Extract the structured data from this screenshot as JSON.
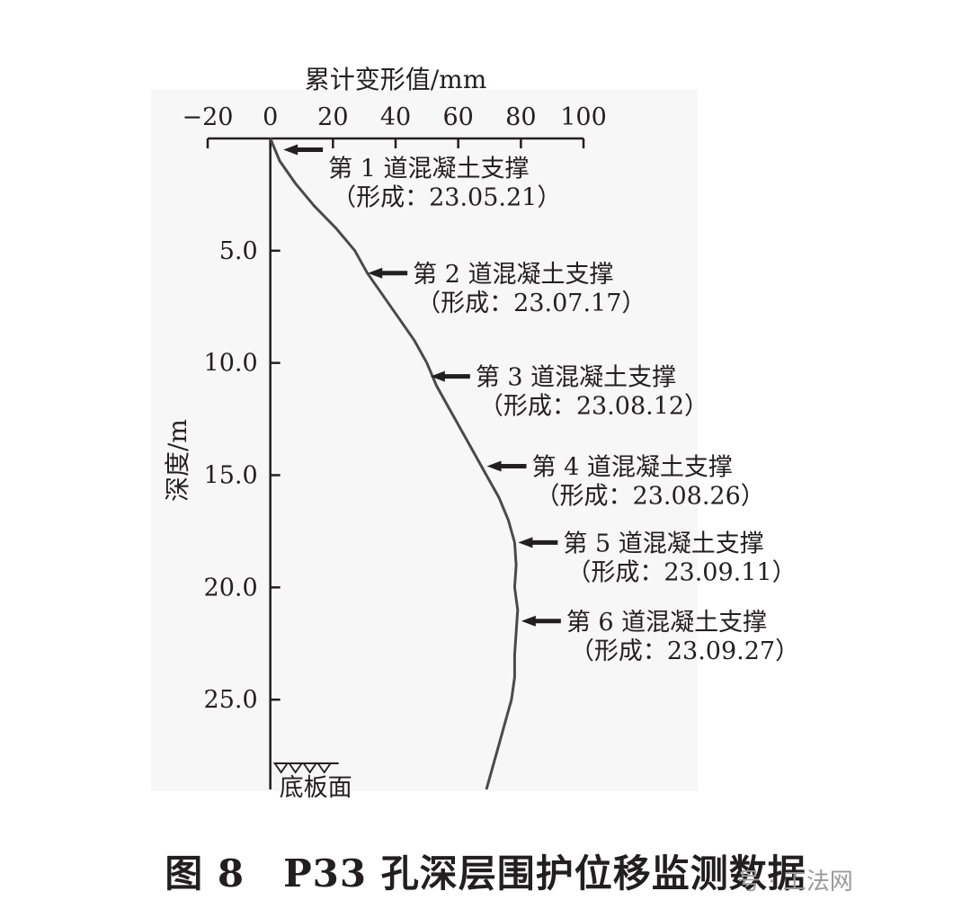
{
  "chart_data": {
    "type": "line",
    "xlabel": "累计变形值/mm",
    "ylabel": "深度/m",
    "xlim": [
      -20,
      100
    ],
    "ylim": [
      0,
      29
    ],
    "y_inverted": true,
    "x_axis_position": "top",
    "xticks": [
      "−20",
      "0",
      "20",
      "40",
      "60",
      "80",
      "100"
    ],
    "xtick_values": [
      -20,
      0,
      20,
      40,
      60,
      80,
      100
    ],
    "yticks": [
      "5.0",
      "10.0",
      "15.0",
      "20.0",
      "25.0"
    ],
    "ytick_values": [
      5,
      10,
      15,
      20,
      25
    ],
    "grid": false,
    "line_color": "#4a4a4a",
    "series": [
      {
        "points": [
          {
            "x": 0,
            "depth": 0
          },
          {
            "x": 3,
            "depth": 1
          },
          {
            "x": 8,
            "depth": 2
          },
          {
            "x": 14,
            "depth": 3
          },
          {
            "x": 21,
            "depth": 4
          },
          {
            "x": 27,
            "depth": 5
          },
          {
            "x": 31,
            "depth": 6
          },
          {
            "x": 36,
            "depth": 7
          },
          {
            "x": 41,
            "depth": 8
          },
          {
            "x": 46,
            "depth": 9
          },
          {
            "x": 50,
            "depth": 10
          },
          {
            "x": 53,
            "depth": 11
          },
          {
            "x": 57,
            "depth": 12
          },
          {
            "x": 61,
            "depth": 13
          },
          {
            "x": 65,
            "depth": 14
          },
          {
            "x": 69,
            "depth": 15
          },
          {
            "x": 73,
            "depth": 16
          },
          {
            "x": 76,
            "depth": 17
          },
          {
            "x": 78,
            "depth": 18
          },
          {
            "x": 78.5,
            "depth": 19
          },
          {
            "x": 78,
            "depth": 20
          },
          {
            "x": 79,
            "depth": 21
          },
          {
            "x": 78.5,
            "depth": 22
          },
          {
            "x": 78,
            "depth": 23
          },
          {
            "x": 78,
            "depth": 24
          },
          {
            "x": 77,
            "depth": 25
          },
          {
            "x": 75,
            "depth": 26
          },
          {
            "x": 73,
            "depth": 27
          },
          {
            "x": 71,
            "depth": 28
          },
          {
            "x": 69,
            "depth": 29
          }
        ]
      }
    ],
    "annotations": [
      {
        "depth": 0.5,
        "x": 3,
        "line1": "第 1 道混凝土支撑",
        "line2": "（形成：23.05.21）"
      },
      {
        "depth": 6.0,
        "x": 30,
        "line1": "第 2 道混凝土支撑",
        "line2": "（形成：23.07.17）"
      },
      {
        "depth": 10.6,
        "x": 50,
        "line1": "第 3 道混凝土支撑",
        "line2": "（形成：23.08.12）"
      },
      {
        "depth": 14.6,
        "x": 68,
        "line1": "第 4 道混凝土支撑",
        "line2": "（形成：23.08.26）"
      },
      {
        "depth": 18.0,
        "x": 78,
        "line1": "第 5 道混凝土支撑",
        "line2": "（形成：23.09.11）"
      },
      {
        "depth": 21.5,
        "x": 79,
        "line1": "第 6 道混凝土支撑",
        "line2": "（形成：23.09.27）"
      }
    ],
    "base_label": "底板面",
    "base_depth": 28
  },
  "caption": "图 8　P33 孔深层围护位移监测数据",
  "watermark": "号 · 工法网"
}
